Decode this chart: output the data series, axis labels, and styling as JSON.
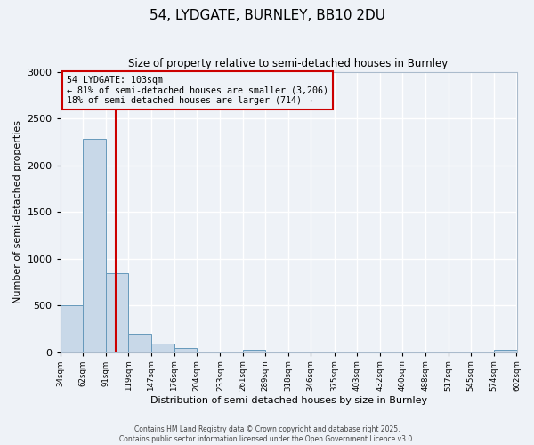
{
  "title": "54, LYDGATE, BURNLEY, BB10 2DU",
  "subtitle": "Size of property relative to semi-detached houses in Burnley",
  "xlabel": "Distribution of semi-detached houses by size in Burnley",
  "ylabel": "Number of semi-detached properties",
  "footnote1": "Contains HM Land Registry data © Crown copyright and database right 2025.",
  "footnote2": "Contains public sector information licensed under the Open Government Licence v3.0.",
  "bin_edges": [
    34,
    62,
    91,
    119,
    147,
    176,
    204,
    233,
    261,
    289,
    318,
    346,
    375,
    403,
    432,
    460,
    488,
    517,
    545,
    574,
    602
  ],
  "bin_labels": [
    "34sqm",
    "62sqm",
    "91sqm",
    "119sqm",
    "147sqm",
    "176sqm",
    "204sqm",
    "233sqm",
    "261sqm",
    "289sqm",
    "318sqm",
    "346sqm",
    "375sqm",
    "403sqm",
    "432sqm",
    "460sqm",
    "488sqm",
    "517sqm",
    "545sqm",
    "574sqm",
    "602sqm"
  ],
  "bar_heights": [
    500,
    2280,
    840,
    195,
    90,
    40,
    0,
    0,
    20,
    0,
    0,
    0,
    0,
    0,
    0,
    0,
    0,
    0,
    0,
    20
  ],
  "bar_color": "#c8d8e8",
  "bar_edge_color": "#6699bb",
  "property_line_x": 103,
  "property_line_color": "#cc0000",
  "annotation_title": "54 LYDGATE: 103sqm",
  "annotation_line1": "← 81% of semi-detached houses are smaller (3,206)",
  "annotation_line2": "18% of semi-detached houses are larger (714) →",
  "annotation_box_color": "#cc0000",
  "ylim": [
    0,
    3000
  ],
  "yticks": [
    0,
    500,
    1000,
    1500,
    2000,
    2500,
    3000
  ],
  "background_color": "#eef2f7",
  "grid_color": "#ffffff"
}
